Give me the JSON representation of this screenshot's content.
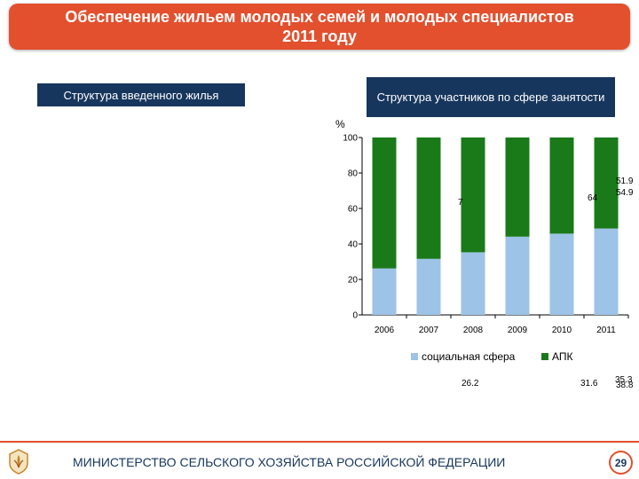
{
  "title": {
    "line1": "Обеспечение жильем молодых семей и молодых специалистов",
    "line2": "2011 году"
  },
  "boxes": {
    "housing": "Структура введенного жилья",
    "participants": "Структура участников по сфере занятости"
  },
  "footer": {
    "ministry": "МИНИСТЕРСТВО СЕЛЬСКОГО ХОЗЯЙСТВА РОССИЙСКОЙ ФЕДЕРАЦИИ",
    "page": "29",
    "logo_icon": "emblem-icon"
  },
  "colors": {
    "banner": "#e2502e",
    "label_box": "#17365d",
    "social": "#9dc3e6",
    "apk": "#1a7a1a"
  },
  "chart_data": {
    "type": "bar",
    "stacked": true,
    "unit": "%",
    "categories": [
      "2006",
      "2007",
      "2008",
      "2009",
      "2010",
      "2011"
    ],
    "series": [
      {
        "name": "социальная сфера",
        "values": [
          26.2,
          31.6,
          35.3,
          44.1,
          45.8,
          48.7
        ]
      },
      {
        "name": "АПК",
        "values": [
          73.8,
          68.4,
          64.7,
          55.9,
          54.2,
          51.3
        ]
      }
    ],
    "ylim": [
      0,
      100
    ],
    "yticks": [
      0,
      20,
      40,
      60,
      80,
      100
    ],
    "legend_position": "bottom",
    "stray_labels": {
      "apk": [
        "51.9",
        "54.9",
        "64",
        "7"
      ],
      "social": [
        "26.2",
        "31.6",
        "35.3",
        "38.8"
      ]
    }
  }
}
